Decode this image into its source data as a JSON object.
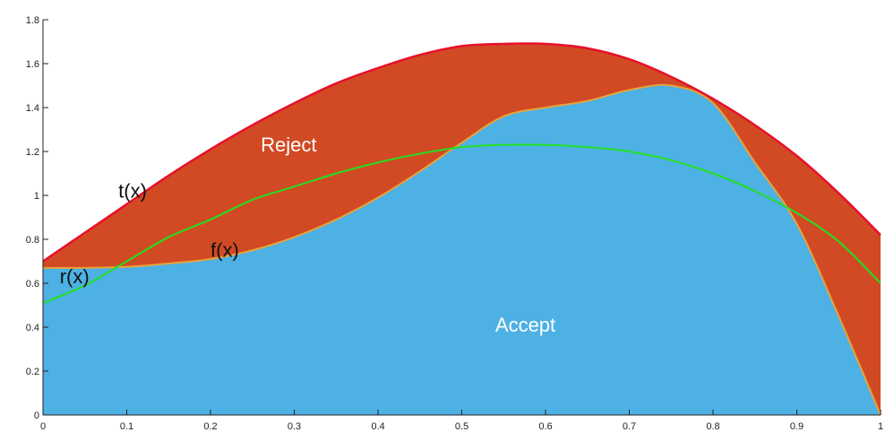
{
  "chart_data": {
    "type": "area",
    "xlim": [
      0,
      1
    ],
    "ylim": [
      0,
      1.8
    ],
    "x_ticks": [
      "0",
      "0.1",
      "0.2",
      "0.3",
      "0.4",
      "0.5",
      "0.6",
      "0.7",
      "0.8",
      "0.9",
      "1"
    ],
    "x_tick_values": [
      0,
      0.1,
      0.2,
      0.3,
      0.4,
      0.5,
      0.6,
      0.7,
      0.8,
      0.9,
      1
    ],
    "y_ticks": [
      "0",
      "0.2",
      "0.4",
      "0.6",
      "0.8",
      "1",
      "1.2",
      "1.4",
      "1.6",
      "1.8"
    ],
    "y_tick_values": [
      0,
      0.2,
      0.4,
      0.6,
      0.8,
      1.0,
      1.2,
      1.4,
      1.6,
      1.8
    ],
    "grid": false,
    "x": [
      0,
      0.05,
      0.1,
      0.15,
      0.2,
      0.25,
      0.3,
      0.35,
      0.4,
      0.45,
      0.5,
      0.55,
      0.6,
      0.65,
      0.7,
      0.75,
      0.8,
      0.85,
      0.9,
      0.95,
      1.0
    ],
    "series": [
      {
        "name": "t(x)",
        "color": "#e8102a",
        "values": [
          0.7,
          0.83,
          0.96,
          1.09,
          1.21,
          1.32,
          1.42,
          1.51,
          1.58,
          1.64,
          1.68,
          1.69,
          1.69,
          1.67,
          1.62,
          1.54,
          1.44,
          1.32,
          1.18,
          1.01,
          0.82
        ]
      },
      {
        "name": "f(x)",
        "color": "#e8a33a",
        "values": [
          0.67,
          0.67,
          0.675,
          0.69,
          0.71,
          0.75,
          0.81,
          0.89,
          0.99,
          1.11,
          1.24,
          1.36,
          1.4,
          1.43,
          1.48,
          1.5,
          1.42,
          1.15,
          0.87,
          0.45,
          0.0
        ]
      },
      {
        "name": "r(x)",
        "color": "#22e022",
        "values": [
          0.51,
          0.59,
          0.7,
          0.81,
          0.89,
          0.98,
          1.04,
          1.1,
          1.15,
          1.19,
          1.22,
          1.23,
          1.23,
          1.22,
          1.2,
          1.16,
          1.1,
          1.02,
          0.92,
          0.79,
          0.6
        ]
      }
    ],
    "regions": [
      {
        "label": "Reject",
        "between": [
          "f(x)",
          "t(x)"
        ],
        "color": "#d14a24"
      },
      {
        "label": "Accept",
        "between": [
          "axis",
          "f(x)"
        ],
        "color": "#4db1e4"
      }
    ],
    "annotations": [
      {
        "text": "t(x)",
        "x": 0.09,
        "y": 0.99
      },
      {
        "text": "f(x)",
        "x": 0.2,
        "y": 0.72
      },
      {
        "text": "r(x)",
        "x": 0.02,
        "y": 0.6
      },
      {
        "text": "Reject",
        "x": 0.26,
        "y": 1.2
      },
      {
        "text": "Accept",
        "x": 0.54,
        "y": 0.38
      }
    ]
  }
}
